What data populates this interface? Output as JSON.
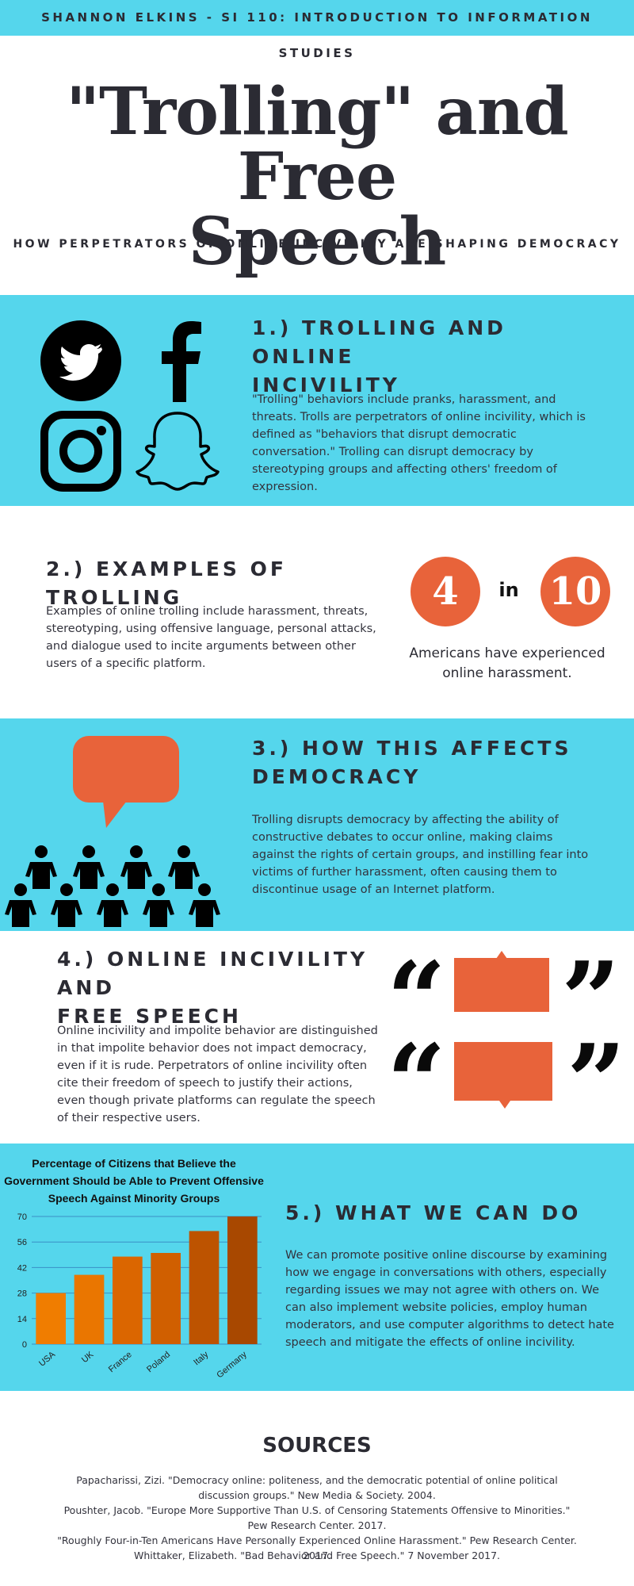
{
  "header": {
    "author_course": "SHANNON ELKINS - SI 110: INTRODUCTION TO INFORMATION STUDIES"
  },
  "title": {
    "line1": "\"Trolling\" and Free",
    "line2": "Speech",
    "subtitle": "HOW PERPETRATORS OF ONLINE INCIVILITY ARE SHAPING DEMOCRACY"
  },
  "section1": {
    "heading_line1": "1.) TROLLING AND ONLINE",
    "heading_line2": "INCIVILITY",
    "body": "\"Trolling\" behaviors include pranks, harassment, and threats. Trolls are perpetrators of online incivility, which is defined as \"behaviors that disrupt democratic conversation.\" Trolling can disrupt democracy by stereotyping groups and affecting others' freedom of expression.",
    "icons": [
      "twitter-icon",
      "facebook-icon",
      "instagram-icon",
      "snapchat-icon"
    ]
  },
  "section2": {
    "heading": "2.) EXAMPLES OF TROLLING",
    "body": "Examples of online trolling include harassment, threats, stereotyping, using offensive language, personal attacks, and dialogue used to incite arguments between other users of a specific platform.",
    "stat_num1": "4",
    "stat_in": "in",
    "stat_num2": "10",
    "stat_caption": "Americans have experienced online harassment."
  },
  "section3": {
    "heading_line1": "3.) HOW THIS AFFECTS",
    "heading_line2": "DEMOCRACY",
    "body": "Trolling disrupts democracy by affecting the ability of constructive debates to occur online, making claims against the rights of certain groups, and instilling fear into victims of further harassment, often causing them to discontinue usage of an Internet platform."
  },
  "section4": {
    "heading_line1": "4.) ONLINE INCIVILITY AND",
    "heading_line2": "FREE SPEECH",
    "body": "Online incivility and impolite behavior are distinguished in that impolite behavior does not impact democracy, even if it is rude. Perpetrators of online incivility often cite their freedom of speech to justify their actions, even though private platforms can regulate the speech of their respective users.",
    "open_quote": "“",
    "close_quote": "”"
  },
  "section5": {
    "heading": "5.) WHAT WE CAN DO",
    "body": "We can promote positive online discourse by examining how we engage in conversations with others, especially regarding issues we may not agree with others on. We can also implement website policies, employ human moderators, and use computer algorithms to detect hate speech and mitigate the effects of online incivility."
  },
  "chart_data": {
    "type": "bar",
    "title_lines": [
      "Percentage of Citizens that Believe the",
      "Government Should be Able to Prevent Offensive",
      "Speech Against Minority Groups"
    ],
    "categories": [
      "USA",
      "UK",
      "France",
      "Poland",
      "Italy",
      "Germany"
    ],
    "values": [
      28,
      38,
      48,
      50,
      62,
      70
    ],
    "yticks": [
      0,
      14,
      28,
      42,
      56,
      70
    ],
    "ylim": [
      0,
      70
    ],
    "grid": true,
    "colors": [
      "#f07d00",
      "#ea7600",
      "#db6600",
      "#d05f00",
      "#bd5300",
      "#a84800"
    ]
  },
  "sources": {
    "title": "SOURCES",
    "items": [
      "Papacharissi, Zizi. \"Democracy online: politeness, and the democratic potential of online political discussion groups.\" New Media & Society. 2004.",
      "Poushter, Jacob. \"Europe More Supportive Than U.S. of Censoring Statements Offensive to Minorities.\" Pew Research Center. 2017.",
      "\"Roughly Four-in-Ten Americans Have Personally Experienced Online Harassment.\" Pew Research Center. 2017.",
      "Whittaker, Elizabeth. \"Bad Behavior and Free Speech.\" 7 November 2017."
    ]
  },
  "colors": {
    "cyan": "#55d6ec",
    "orange": "#e8633a",
    "dark_text": "#2b2b33"
  }
}
